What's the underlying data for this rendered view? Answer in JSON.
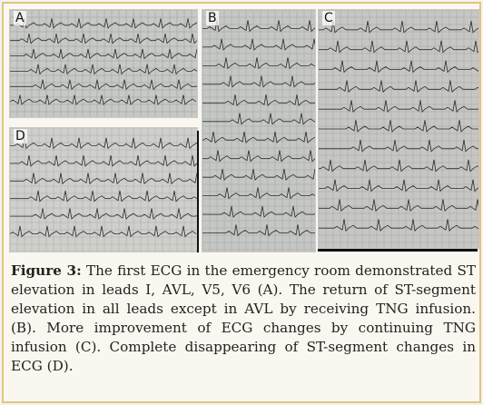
{
  "figure": {
    "panels": [
      {
        "id": "a",
        "label": "A"
      },
      {
        "id": "b",
        "label": "B"
      },
      {
        "id": "c",
        "label": "C"
      },
      {
        "id": "d",
        "label": "D"
      }
    ],
    "caption": {
      "prefix": "Figure 3:",
      "text": " The first ECG in the emergency room demonstrated ST elevation in leads I, AVL, V5, V6 (A). The return of ST-segment elevation in all leads except in AVL by receiving TNG infusion. (B). More improvement of ECG changes by continuing TNG infusion (C). Complete disappearing of ST-segment changes in ECG (D)."
    }
  }
}
